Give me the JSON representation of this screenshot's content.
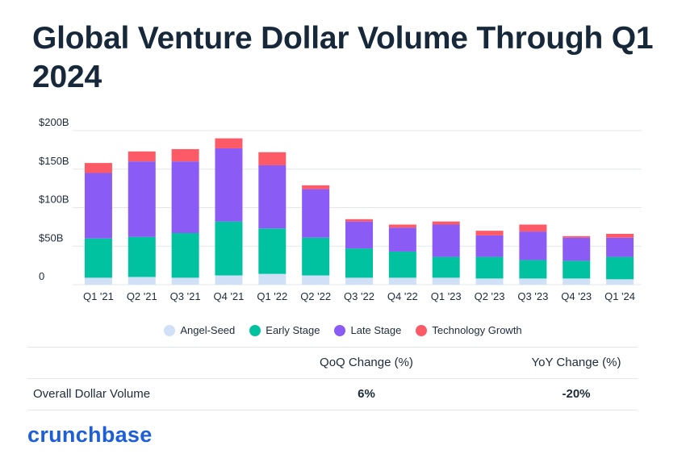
{
  "title": "Global Venture Dollar Volume Through Q1 2024",
  "chart_data": {
    "type": "bar",
    "stacked": true,
    "title": "Global Venture Dollar Volume Through Q1 2024",
    "xlabel": "",
    "ylabel": "",
    "ylim": [
      0,
      200
    ],
    "y_ticks": [
      {
        "value": 0,
        "label": "0"
      },
      {
        "value": 50,
        "label": "$50B"
      },
      {
        "value": 100,
        "label": "$100B"
      },
      {
        "value": 150,
        "label": "$150B"
      },
      {
        "value": 200,
        "label": "$200B"
      }
    ],
    "categories": [
      "Q1 '21",
      "Q2 '21",
      "Q3 '21",
      "Q4 '21",
      "Q1 '22",
      "Q2 '22",
      "Q3 '22",
      "Q4 '22",
      "Q1 '23",
      "Q2 '23",
      "Q3 '23",
      "Q4 '23",
      "Q1 '24"
    ],
    "series": [
      {
        "name": "Angel-Seed",
        "color": "#cfe0f7",
        "values": [
          9,
          10,
          9,
          12,
          14,
          12,
          9,
          9,
          9,
          8,
          8,
          8,
          7
        ]
      },
      {
        "name": "Early Stage",
        "color": "#00c2a0",
        "values": [
          51,
          52,
          58,
          70,
          59,
          49,
          38,
          34,
          27,
          28,
          24,
          23,
          29
        ]
      },
      {
        "name": "Late Stage",
        "color": "#8a5cf5",
        "values": [
          85,
          98,
          93,
          95,
          82,
          63,
          35,
          31,
          42,
          28,
          37,
          30,
          25
        ]
      },
      {
        "name": "Technology Growth",
        "color": "#fb5a66",
        "values": [
          13,
          13,
          16,
          13,
          17,
          5,
          3,
          4,
          4,
          6,
          9,
          2,
          5
        ]
      }
    ],
    "legend_position": "bottom"
  },
  "table": {
    "headers": [
      "",
      "QoQ Change (%)",
      "YoY Change (%)"
    ],
    "rows": [
      {
        "label": "Overall Dollar Volume",
        "qoq": "6%",
        "yoy": "-20%"
      }
    ]
  },
  "brand": "crunchbase"
}
